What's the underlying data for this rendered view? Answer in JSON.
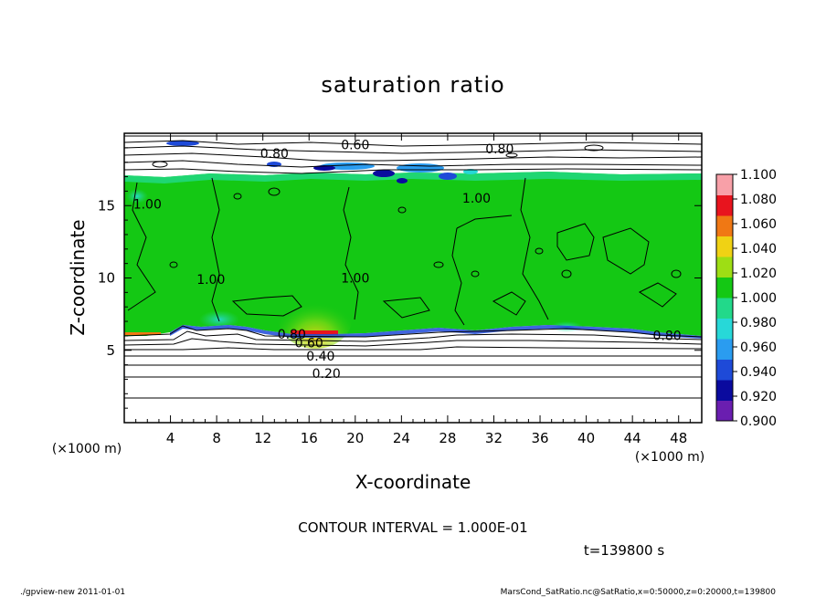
{
  "chart_data": {
    "type": "heatmap",
    "title": "saturation ratio",
    "xlabel": "X-coordinate",
    "ylabel": "Z-coordinate",
    "x_unit": "(×1000 m)",
    "y_unit": "(×1000 m)",
    "xlim": [
      0,
      50
    ],
    "ylim": [
      0,
      20
    ],
    "x_ticks": [
      4,
      8,
      12,
      16,
      20,
      24,
      28,
      32,
      36,
      40,
      44,
      48
    ],
    "y_ticks": [
      5,
      10,
      15
    ],
    "colorbar": {
      "values": [
        0.9,
        0.92,
        0.94,
        0.96,
        0.98,
        1.0,
        1.02,
        1.04,
        1.06,
        1.08,
        1.1
      ],
      "labels": [
        "0.900",
        "0.920",
        "0.940",
        "0.960",
        "0.980",
        "1.000",
        "1.020",
        "1.040",
        "1.060",
        "1.080",
        "1.100"
      ],
      "colors": [
        "#6a1eb0",
        "#0a0a9e",
        "#1e4ad8",
        "#2a9cf0",
        "#27d8d8",
        "#22d98a",
        "#14c814",
        "#9ede14",
        "#f0d214",
        "#f07814",
        "#e8141e",
        "#f8a0a8"
      ]
    },
    "contour_interval": "CONTOUR INTERVAL = 1.000E-01",
    "contour_labels": [
      {
        "text": "0.60",
        "x": 20.0,
        "y": 18.9
      },
      {
        "text": "0.80",
        "x": 13.0,
        "y": 18.3
      },
      {
        "text": "0.80",
        "x": 32.5,
        "y": 18.6
      },
      {
        "text": "1.00",
        "x": 30.5,
        "y": 15.2
      },
      {
        "text": "1.00",
        "x": 2.0,
        "y": 14.8
      },
      {
        "text": "1.00",
        "x": 7.5,
        "y": 9.6
      },
      {
        "text": "1.00",
        "x": 20.0,
        "y": 9.7
      },
      {
        "text": "0.80",
        "x": 14.5,
        "y": 5.8
      },
      {
        "text": "0.60",
        "x": 16.0,
        "y": 5.2
      },
      {
        "text": "0.40",
        "x": 17.0,
        "y": 4.3
      },
      {
        "text": "0.20",
        "x": 17.5,
        "y": 3.1
      },
      {
        "text": "0.80",
        "x": 47.0,
        "y": 5.7
      }
    ],
    "time_label": "t=139800 s"
  },
  "footer": {
    "left": "./gpview-new   2011-01-01",
    "right": "MarsCond_SatRatio.nc@SatRatio,x=0:50000,z=0:20000,t=139800"
  }
}
